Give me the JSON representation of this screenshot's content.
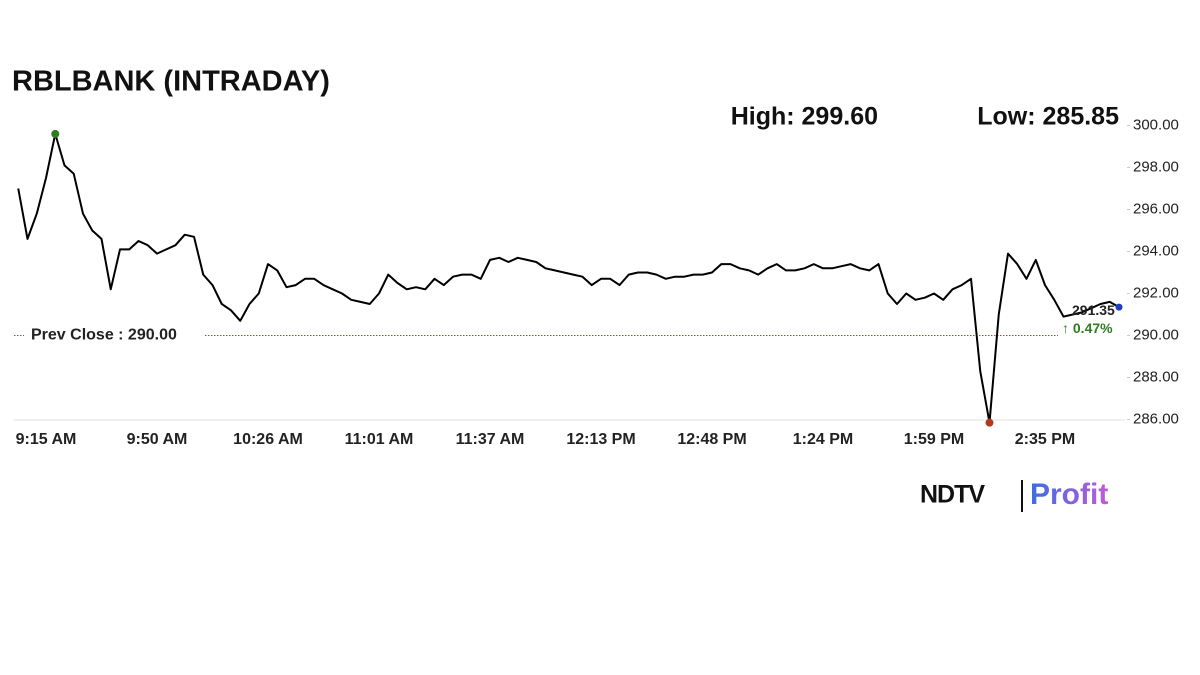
{
  "chart_data": {
    "type": "line",
    "title": "RBLBANK (INTRADAY)",
    "high_label": "High: 299.60",
    "low_label": "Low: 285.85",
    "prev_close": 290,
    "prev_close_label": "Prev Close : 290.00",
    "last_label": "291.35",
    "change_label": "↑ 0.47%",
    "logo": [
      "NDTV",
      "Profit"
    ],
    "color": "#000000",
    "high_color": "#2e7d1f",
    "low_color": "#b03a1e",
    "last_color": "#1f3fbf",
    "prev_close_color": "#a0522d",
    "change_color": "#2e7d1f",
    "categories": [
      null,
      null,
      null,
      "9:15 AM",
      null,
      null,
      null,
      null,
      null,
      null,
      null,
      null,
      null,
      null,
      null,
      "9:50 AM",
      null,
      null,
      null,
      null,
      null,
      null,
      null,
      null,
      null,
      null,
      null,
      "10:26 AM",
      null,
      null,
      null,
      null,
      null,
      null,
      null,
      null,
      null,
      null,
      null,
      "11:01 AM",
      null,
      null,
      null,
      null,
      null,
      null,
      null,
      null,
      null,
      null,
      null,
      "11:37 AM",
      null,
      null,
      null,
      null,
      null,
      null,
      null,
      null,
      null,
      null,
      null,
      "12:13 PM",
      null,
      null,
      null,
      null,
      null,
      null,
      null,
      null,
      null,
      null,
      null,
      "12:48 PM",
      null,
      null,
      null,
      null,
      null,
      null,
      null,
      null,
      null,
      null,
      null,
      "1:24 PM",
      null,
      null,
      null,
      null,
      null,
      null,
      null,
      null,
      null,
      null,
      null,
      "1:59 PM",
      null,
      null,
      null,
      null,
      null,
      null,
      null,
      null,
      null,
      null,
      null,
      "2:35 PM",
      null,
      null,
      null,
      null,
      null,
      null,
      null,
      null
    ],
    "values": [
      297.0,
      294.6,
      295.8,
      297.5,
      299.6,
      298.1,
      297.7,
      295.8,
      295.0,
      294.6,
      292.2,
      294.1,
      294.1,
      294.5,
      294.3,
      293.9,
      294.1,
      294.3,
      294.8,
      294.7,
      292.9,
      292.4,
      291.5,
      291.2,
      290.7,
      291.5,
      292.0,
      293.4,
      293.1,
      292.3,
      292.4,
      292.7,
      292.7,
      292.4,
      292.2,
      292.0,
      291.7,
      291.6,
      291.5,
      292.0,
      292.9,
      292.5,
      292.2,
      292.3,
      292.2,
      292.7,
      292.4,
      292.8,
      292.9,
      292.9,
      292.7,
      293.6,
      293.7,
      293.5,
      293.7,
      293.6,
      293.5,
      293.2,
      293.1,
      293.0,
      292.9,
      292.8,
      292.4,
      292.7,
      292.7,
      292.4,
      292.9,
      293.0,
      293.0,
      292.9,
      292.7,
      292.8,
      292.8,
      292.9,
      292.9,
      293.0,
      293.4,
      293.4,
      293.2,
      293.1,
      292.9,
      293.2,
      293.4,
      293.1,
      293.1,
      293.2,
      293.4,
      293.2,
      293.2,
      293.3,
      293.4,
      293.2,
      293.1,
      293.4,
      292.0,
      291.5,
      292.0,
      291.7,
      291.8,
      292.0,
      291.7,
      292.2,
      292.4,
      292.7,
      288.3,
      285.85,
      291.0,
      293.9,
      293.4,
      292.7,
      293.6,
      292.4,
      291.7,
      290.9,
      291.0,
      291.1,
      291.3,
      291.5,
      291.6,
      291.35
    ],
    "ylim": [
      285.5,
      300.5
    ],
    "yticks": [
      {
        "value": 286,
        "label": "286.00"
      },
      {
        "value": 288,
        "label": "288.00"
      },
      {
        "value": 290,
        "label": "290.00"
      },
      {
        "value": 292,
        "label": "292.00"
      },
      {
        "value": 294,
        "label": "294.00"
      },
      {
        "value": 296,
        "label": "296.00"
      },
      {
        "value": 298,
        "label": "298.00"
      },
      {
        "value": 300,
        "label": "300.00"
      }
    ]
  }
}
